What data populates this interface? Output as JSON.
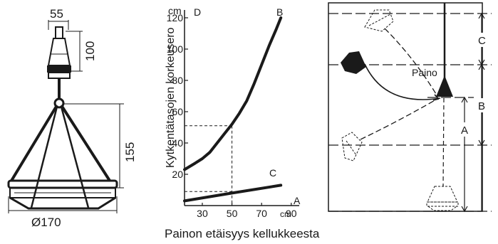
{
  "left_diagram": {
    "dim_top_width": "55",
    "dim_top_height": "100",
    "dim_body_height": "155",
    "dim_diameter": "Ø170"
  },
  "chart_data": {
    "type": "line",
    "ylabel": "Kytkentätasojen korkeusero",
    "y_unit": "cm",
    "xlabel": "Painon etäisyys kellukkeesta",
    "x_unit": "cm",
    "x_ticks": [
      "30",
      "50",
      "70",
      "90"
    ],
    "y_ticks": [
      "20",
      "40",
      "60",
      "80",
      "100",
      "120"
    ],
    "xlim": [
      18,
      100
    ],
    "ylim": [
      0,
      125
    ],
    "corner_label": "D",
    "series": [
      {
        "name": "B",
        "x": [
          18,
          25,
          30,
          35,
          40,
          45,
          50,
          55,
          60,
          65,
          70,
          75,
          80,
          83
        ],
        "y": [
          23,
          27,
          30,
          34,
          40,
          46,
          52,
          59,
          67,
          78,
          90,
          102,
          113,
          120
        ]
      },
      {
        "name": "C",
        "x": [
          18,
          50,
          83
        ],
        "y": [
          3,
          8,
          13
        ]
      },
      {
        "name": "A",
        "x": [],
        "y": []
      }
    ],
    "guide": {
      "x": 50,
      "y_upper": 51,
      "y_lower": 9
    }
  },
  "right_diagram": {
    "weight_label": "Paino",
    "dim_labels": [
      "C",
      "B",
      "A"
    ]
  }
}
